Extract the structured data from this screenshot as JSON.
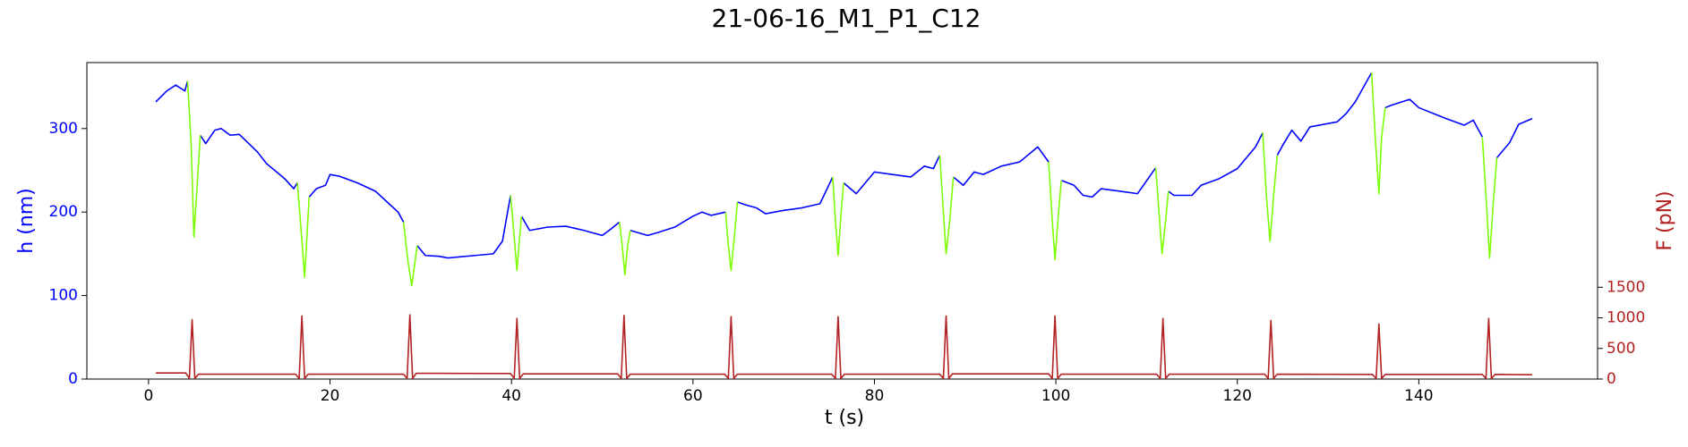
{
  "chart_data": {
    "type": "line",
    "title": "21-06-16_M1_P1_C12",
    "xlabel": "t (s)",
    "ylabel": "h (nm)",
    "y2label": "F (pN)",
    "xlim": [
      -6.8,
      159.7
    ],
    "xticks": [
      0,
      20,
      40,
      60,
      80,
      100,
      120,
      140
    ],
    "ylim": [
      0,
      379
    ],
    "yticks": [
      0,
      100,
      200,
      300
    ],
    "y2lim": [
      0,
      5170
    ],
    "y2ticks": [
      0,
      500,
      1000,
      1500
    ],
    "ylabel_color": "#0000ff",
    "y2label_color": "#b22222",
    "grid": false,
    "series": [
      {
        "color": "#0000ff",
        "x": [
          0.8,
          2,
          3,
          4,
          4.3,
          4.31,
          5.7,
          6.3,
          7.3,
          8,
          9,
          10,
          12,
          13,
          14,
          15,
          16,
          16.4,
          16.41,
          17.7,
          18.5,
          19.5,
          20,
          21,
          23,
          25,
          26.5,
          27.5,
          28.1,
          28.11,
          29.6,
          30.5,
          32,
          33,
          36,
          38,
          39,
          39.9,
          39.91,
          41.1,
          42,
          44,
          46,
          48,
          50,
          51,
          51.9,
          51.91,
          53.1,
          55,
          56,
          58,
          60,
          61,
          62,
          63.6,
          63.61,
          64.9,
          66,
          67,
          68,
          70,
          72,
          74,
          75.4,
          75.41,
          76.6,
          78,
          80,
          82,
          84,
          85.5,
          86.5,
          87.2,
          87.21,
          88.7,
          89.8,
          91,
          92,
          94,
          96,
          98,
          99.2,
          99.21,
          100.6,
          102,
          103,
          104,
          105,
          107,
          109,
          111,
          111.01,
          112.4,
          113,
          115,
          116,
          118,
          120,
          121,
          122,
          122.8,
          122.81,
          124.4,
          125,
          126,
          127,
          128,
          131,
          132,
          133,
          134.8,
          134.81,
          136.3,
          137,
          139,
          140,
          143,
          145,
          146,
          147,
          147.01,
          148.6,
          150,
          151,
          152.5
        ],
        "values": [
          332,
          345,
          352,
          345,
          357,
          null,
          292,
          282,
          298,
          300,
          292,
          293,
          272,
          258,
          249,
          240,
          228,
          235,
          null,
          218,
          228,
          232,
          245,
          243,
          235,
          225,
          210,
          200,
          188,
          null,
          160,
          148,
          147,
          145,
          148,
          150,
          165,
          220,
          null,
          195,
          178,
          182,
          183,
          178,
          172,
          180,
          188,
          null,
          178,
          172,
          175,
          182,
          195,
          200,
          196,
          200,
          null,
          212,
          208,
          205,
          198,
          202,
          205,
          210,
          242,
          null,
          235,
          222,
          248,
          245,
          242,
          255,
          252,
          268,
          null,
          242,
          232,
          248,
          245,
          255,
          260,
          278,
          260,
          null,
          238,
          232,
          220,
          218,
          228,
          225,
          222,
          253,
          null,
          225,
          220,
          220,
          232,
          240,
          252,
          265,
          278,
          295,
          null,
          268,
          280,
          298,
          285,
          302,
          308,
          318,
          332,
          367,
          null,
          325,
          328,
          335,
          325,
          312,
          304,
          310,
          290,
          null,
          265,
          283,
          305,
          312
        ]
      },
      {
        "color": "#7cfc00",
        "x": [
          4.3,
          4.7,
          5.0,
          5.4,
          5.7,
          11,
          16.4,
          16.8,
          17.2,
          17.5,
          17.7,
          23,
          28.1,
          28.6,
          29.0,
          29.3,
          29.6,
          35,
          39.9,
          40.3,
          40.6,
          40.9,
          41.1,
          46,
          51.9,
          52.2,
          52.5,
          52.8,
          53.1,
          58,
          63.6,
          63.9,
          64.2,
          64.6,
          64.9,
          70,
          75.4,
          75.7,
          76.0,
          76.3,
          76.6,
          82,
          87.2,
          87.6,
          87.9,
          88.3,
          88.7,
          94,
          99.2,
          99.6,
          99.9,
          100.3,
          100.6,
          106,
          111.0,
          111.4,
          111.7,
          112.1,
          112.4,
          118,
          122.8,
          123.2,
          123.6,
          124.0,
          124.4,
          130,
          134.8,
          135.2,
          135.6,
          135.9,
          136.3,
          142,
          147.0,
          147.4,
          147.8,
          148.2,
          148.6
        ],
        "values": [
          357,
          280,
          170,
          240,
          292,
          null,
          235,
          180,
          122,
          180,
          218,
          null,
          188,
          140,
          112,
          135,
          160,
          null,
          220,
          170,
          130,
          170,
          195,
          null,
          188,
          160,
          125,
          160,
          178,
          null,
          200,
          160,
          130,
          175,
          212,
          null,
          242,
          190,
          148,
          195,
          235,
          null,
          268,
          200,
          150,
          190,
          242,
          null,
          260,
          190,
          143,
          200,
          238,
          null,
          253,
          195,
          150,
          190,
          225,
          null,
          295,
          220,
          165,
          220,
          268,
          null,
          367,
          290,
          222,
          290,
          325,
          null,
          290,
          220,
          145,
          210,
          265
        ]
      },
      {
        "color": "#b22222",
        "axis": "y2",
        "x": [
          0.8,
          4.1,
          4.5,
          4.8,
          5.1,
          5.5,
          16.2,
          16.6,
          16.9,
          17.2,
          17.6,
          28.1,
          28.5,
          28.8,
          29.1,
          29.5,
          39.9,
          40.3,
          40.6,
          40.9,
          41.3,
          51.7,
          52.1,
          52.4,
          52.7,
          53.1,
          63.5,
          63.9,
          64.2,
          64.5,
          64.9,
          75.3,
          75.7,
          76.0,
          76.3,
          76.7,
          87.2,
          87.6,
          87.9,
          88.2,
          88.6,
          99.2,
          99.6,
          99.9,
          100.2,
          100.6,
          111.1,
          111.5,
          111.8,
          112.1,
          112.5,
          123.0,
          123.4,
          123.7,
          124.0,
          124.4,
          134.9,
          135.3,
          135.6,
          135.9,
          136.3,
          147.0,
          147.4,
          147.7,
          148.0,
          148.4,
          152.5
        ],
        "values": [
          100,
          100,
          10,
          970,
          10,
          80,
          80,
          10,
          1030,
          10,
          80,
          80,
          10,
          1050,
          10,
          95,
          90,
          10,
          990,
          10,
          85,
          85,
          10,
          1040,
          10,
          80,
          80,
          10,
          1020,
          10,
          80,
          80,
          10,
          1020,
          10,
          80,
          80,
          10,
          1030,
          10,
          85,
          85,
          10,
          1030,
          10,
          80,
          80,
          10,
          990,
          10,
          80,
          80,
          10,
          960,
          10,
          80,
          75,
          10,
          900,
          10,
          75,
          75,
          10,
          990,
          10,
          75,
          70
        ]
      }
    ]
  }
}
